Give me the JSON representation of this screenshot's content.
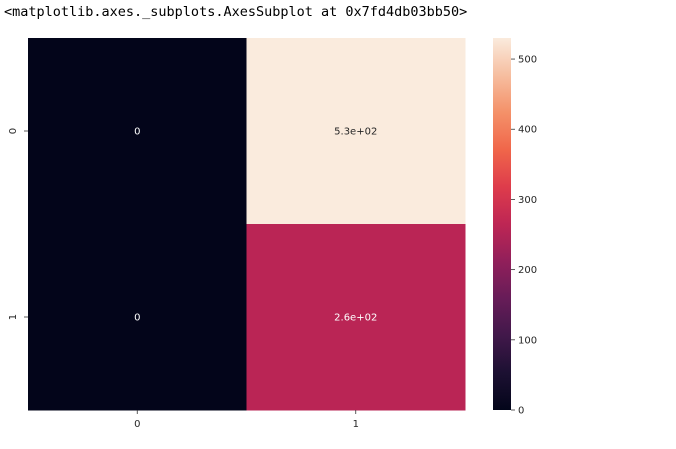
{
  "output_repr": "<matplotlib.axes._subplots.AxesSubplot at 0x7fd4db03bb50>",
  "chart_data": {
    "type": "heatmap",
    "title": "",
    "xlabel": "",
    "ylabel": "",
    "x_categories": [
      "0",
      "1"
    ],
    "y_categories": [
      "0",
      "1"
    ],
    "values": [
      [
        0,
        530
      ],
      [
        0,
        260
      ]
    ],
    "annotations": [
      [
        "0",
        "5.3e+02"
      ],
      [
        "0",
        "2.6e+02"
      ]
    ],
    "colorbar": {
      "range": [
        0,
        530
      ],
      "ticks": [
        0,
        100,
        200,
        300,
        400,
        500
      ],
      "tick_labels": [
        "0",
        "100",
        "200",
        "300",
        "400",
        "500"
      ],
      "colormap": "rocket"
    },
    "grid": false,
    "legend": "none"
  }
}
